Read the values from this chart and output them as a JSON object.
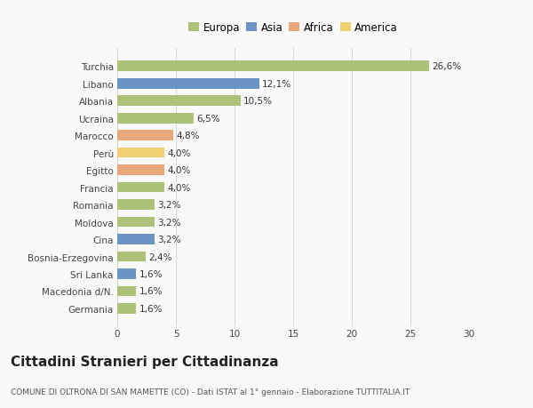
{
  "categories": [
    "Turchia",
    "Libano",
    "Albania",
    "Ucraina",
    "Marocco",
    "Perù",
    "Egitto",
    "Francia",
    "Romania",
    "Moldova",
    "Cina",
    "Bosnia-Erzegovina",
    "Sri Lanka",
    "Macedonia d/N.",
    "Germania"
  ],
  "values": [
    26.6,
    12.1,
    10.5,
    6.5,
    4.8,
    4.0,
    4.0,
    4.0,
    3.2,
    3.2,
    3.2,
    2.4,
    1.6,
    1.6,
    1.6
  ],
  "labels": [
    "26,6%",
    "12,1%",
    "10,5%",
    "6,5%",
    "4,8%",
    "4,0%",
    "4,0%",
    "4,0%",
    "3,2%",
    "3,2%",
    "3,2%",
    "2,4%",
    "1,6%",
    "1,6%",
    "1,6%"
  ],
  "colors": [
    "#adc178",
    "#6b93c4",
    "#adc178",
    "#adc178",
    "#e8a87c",
    "#f0d070",
    "#e8a87c",
    "#adc178",
    "#adc178",
    "#adc178",
    "#6b93c4",
    "#adc178",
    "#6b93c4",
    "#adc178",
    "#adc178"
  ],
  "legend_labels": [
    "Europa",
    "Asia",
    "Africa",
    "America"
  ],
  "legend_colors": [
    "#adc178",
    "#6b93c4",
    "#e8a87c",
    "#f0d070"
  ],
  "title": "Cittadini Stranieri per Cittadinanza",
  "subtitle": "COMUNE DI OLTRONA DI SAN MAMETTE (CO) - Dati ISTAT al 1° gennaio - Elaborazione TUTTITALIA.IT",
  "xlim": [
    0,
    30
  ],
  "xticks": [
    0,
    5,
    10,
    15,
    20,
    25,
    30
  ],
  "background_color": "#f9f9f9",
  "grid_color": "#d8d8d8",
  "bar_height": 0.6,
  "label_fontsize": 7.5,
  "tick_fontsize": 7.5,
  "title_fontsize": 11,
  "subtitle_fontsize": 6.5
}
